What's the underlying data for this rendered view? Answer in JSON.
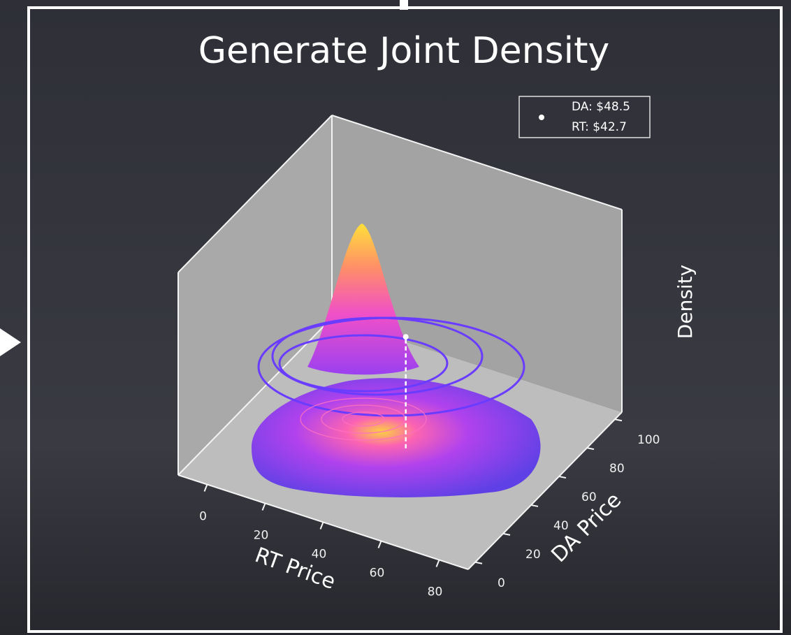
{
  "chart_data": {
    "type": "density3d",
    "title": "Generate Joint Density",
    "xlabel": "RT Price",
    "ylabel": "DA Price",
    "zlabel": "Density",
    "xlim": [
      -10,
      90
    ],
    "xticks": [
      0,
      20,
      40,
      60,
      80
    ],
    "ylim": [
      -5,
      105
    ],
    "yticks": [
      0,
      20,
      40,
      60,
      80,
      100
    ],
    "point": {
      "rt": 42.7,
      "da": 48.5,
      "color": "#ffffff"
    },
    "legend": [
      "DA: $48.5",
      "RT: $42.7"
    ]
  }
}
